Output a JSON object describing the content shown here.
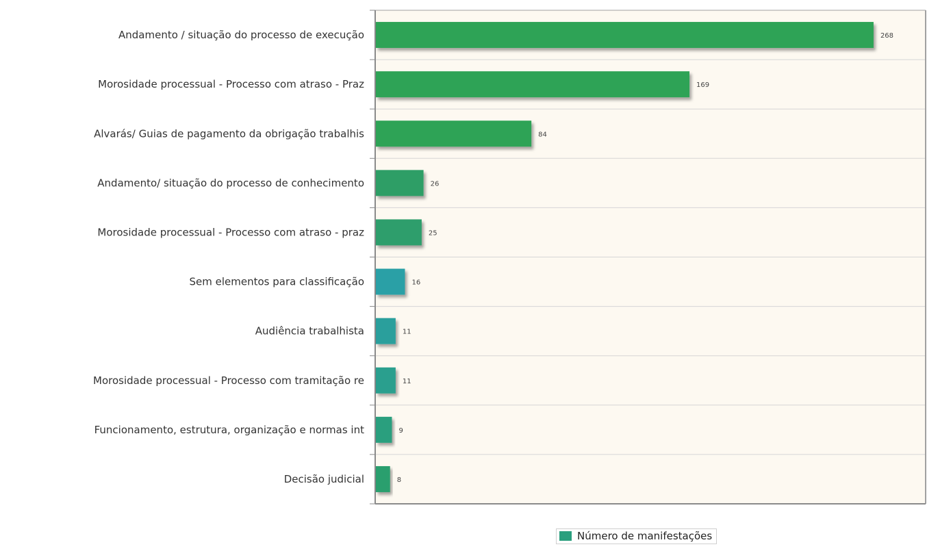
{
  "chart_data": {
    "type": "bar",
    "orientation": "horizontal",
    "categories": [
      "Andamento / situação do processo de execução",
      "Morosidade processual - Processo com atraso - Praz",
      "Alvarás/ Guias de pagamento da obrigação trabalhis",
      "Andamento/ situação do processo de conhecimento",
      "Morosidade processual - Processo com atraso - praz",
      "Sem elementos para classificação",
      "Audiência trabalhista",
      "Morosidade processual - Processo com tramitação re",
      "Funcionamento, estrutura, organização e normas int",
      "Decisão judicial"
    ],
    "series": [
      {
        "name": "Número de manifestações",
        "values": [
          268,
          169,
          84,
          26,
          25,
          16,
          11,
          11,
          9,
          8
        ]
      }
    ],
    "value_labels": [
      "268",
      "169",
      "84",
      "26",
      "25",
      "16",
      "11",
      "11",
      "9",
      "8"
    ],
    "bar_colors": [
      "#2ea356",
      "#2ea356",
      "#2ea356",
      "#2e9e66",
      "#2e9e6c",
      "#2aa0a6",
      "#2a9f9c",
      "#2a9f8e",
      "#2a9f7e",
      "#2a9f6e"
    ],
    "legend_color": "#2a9f7e",
    "xlim": [
      0,
      296
    ],
    "grid": true,
    "legend_position": "bottom",
    "plot_background": "#fdf9f1"
  }
}
